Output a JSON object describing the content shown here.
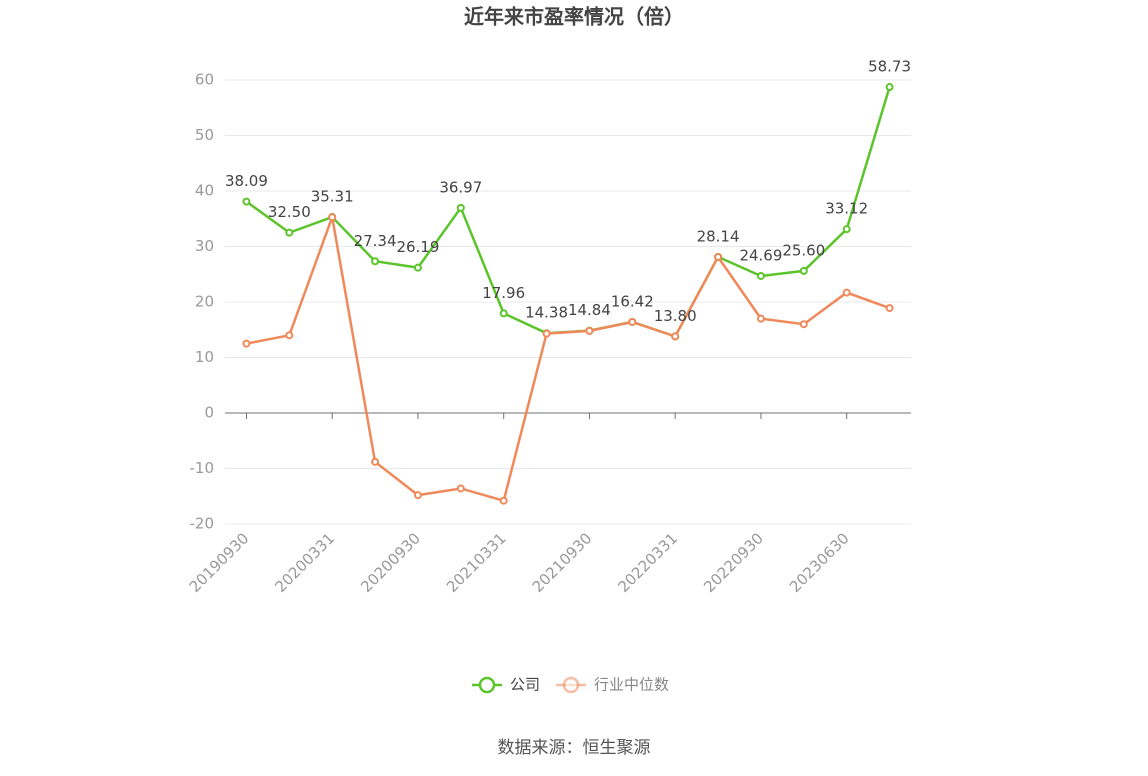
{
  "chart_data": {
    "type": "line",
    "title": "近年来市盈率情况（倍）",
    "categories": [
      "20190930",
      null,
      "20200331",
      null,
      "20200930",
      null,
      "20210331",
      null,
      "20210930",
      null,
      "20220331",
      null,
      "20220930",
      null,
      "20230630",
      null
    ],
    "series": [
      {
        "name": "公司",
        "color": "#5cc42b",
        "values": [
          38.09,
          32.5,
          35.31,
          27.34,
          26.19,
          36.97,
          17.96,
          14.38,
          14.84,
          16.42,
          13.8,
          28.14,
          24.69,
          25.6,
          33.12,
          58.73
        ],
        "value_labels": [
          "38.09",
          "32.50",
          "35.31",
          "27.34",
          "26.19",
          "36.97",
          "17.96",
          "14.38",
          "14.84",
          "16.42",
          "13.80",
          "28.14",
          "24.69",
          "25.60",
          "33.12",
          "58.73"
        ]
      },
      {
        "name": "行业中位数",
        "color": "#f0895a",
        "values": [
          12.5,
          14,
          35.3,
          -8.8,
          -14.8,
          -13.6,
          -15.8,
          14.3,
          14.8,
          16.4,
          13.8,
          28.1,
          17,
          16,
          21.7,
          18.9
        ]
      }
    ],
    "ylim": [
      -20,
      60
    ],
    "yticks": [
      -20,
      -10,
      0,
      10,
      20,
      30,
      40,
      50,
      60
    ],
    "grid": true,
    "source": "数据来源：恒生聚源"
  }
}
